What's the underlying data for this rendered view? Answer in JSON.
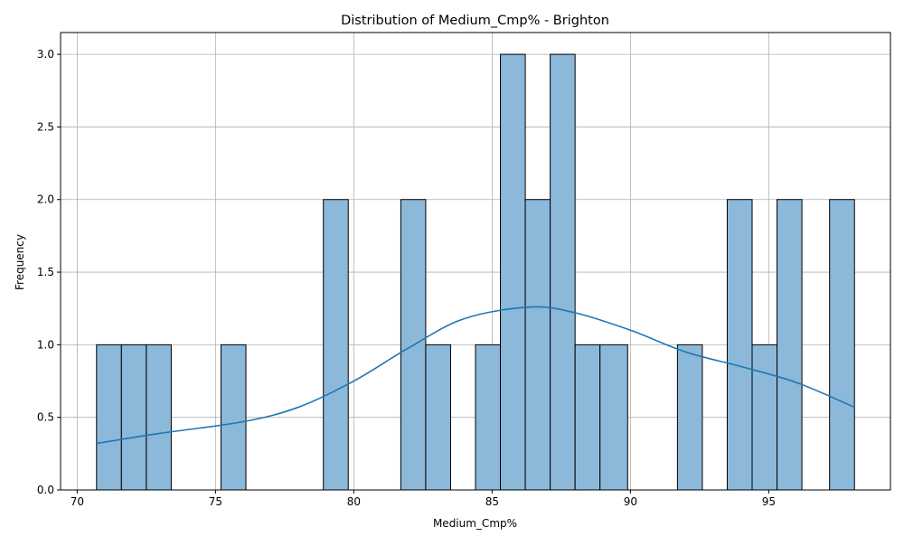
{
  "chart_data": {
    "type": "bar",
    "title": "Distribution of Medium_Cmp% - Brighton",
    "xlabel": "Medium_Cmp%",
    "ylabel": "Frequency",
    "xlim": [
      69.4,
      99.4
    ],
    "ylim": [
      0,
      3.15
    ],
    "xticks": [
      70,
      75,
      80,
      85,
      90,
      95
    ],
    "yticks": [
      0.0,
      0.5,
      1.0,
      1.5,
      2.0,
      2.5,
      3.0
    ],
    "xtick_labels": [
      "70",
      "75",
      "80",
      "85",
      "90",
      "95"
    ],
    "ytick_labels": [
      "0.0",
      "0.5",
      "1.0",
      "1.5",
      "2.0",
      "2.5",
      "3.0"
    ],
    "grid": true,
    "bar_color": "#8cb8d9",
    "bar_edge_color": "#000000",
    "kde_color": "#1f77b4",
    "bins": [
      {
        "x0": 70.7,
        "x1": 71.6,
        "count": 1
      },
      {
        "x0": 71.6,
        "x1": 72.5,
        "count": 1
      },
      {
        "x0": 72.5,
        "x1": 73.4,
        "count": 1
      },
      {
        "x0": 75.2,
        "x1": 76.1,
        "count": 1
      },
      {
        "x0": 78.9,
        "x1": 79.8,
        "count": 2
      },
      {
        "x0": 81.7,
        "x1": 82.6,
        "count": 2
      },
      {
        "x0": 82.6,
        "x1": 83.5,
        "count": 1
      },
      {
        "x0": 84.4,
        "x1": 85.3,
        "count": 1
      },
      {
        "x0": 85.3,
        "x1": 86.2,
        "count": 3
      },
      {
        "x0": 86.2,
        "x1": 87.1,
        "count": 2
      },
      {
        "x0": 87.1,
        "x1": 88.0,
        "count": 3
      },
      {
        "x0": 88.0,
        "x1": 88.9,
        "count": 1
      },
      {
        "x0": 88.9,
        "x1": 89.9,
        "count": 1
      },
      {
        "x0": 91.7,
        "x1": 92.6,
        "count": 1
      },
      {
        "x0": 93.5,
        "x1": 94.4,
        "count": 2
      },
      {
        "x0": 94.4,
        "x1": 95.3,
        "count": 1
      },
      {
        "x0": 95.3,
        "x1": 96.2,
        "count": 2
      },
      {
        "x0": 97.2,
        "x1": 98.1,
        "count": 2
      }
    ],
    "kde": {
      "x": [
        70.7,
        73,
        76,
        78,
        80,
        82,
        84,
        86.4,
        88,
        90,
        92,
        94,
        96,
        98.1
      ],
      "y": [
        0.32,
        0.39,
        0.47,
        0.57,
        0.75,
        0.98,
        1.18,
        1.26,
        1.22,
        1.1,
        0.95,
        0.85,
        0.74,
        0.57
      ]
    }
  }
}
